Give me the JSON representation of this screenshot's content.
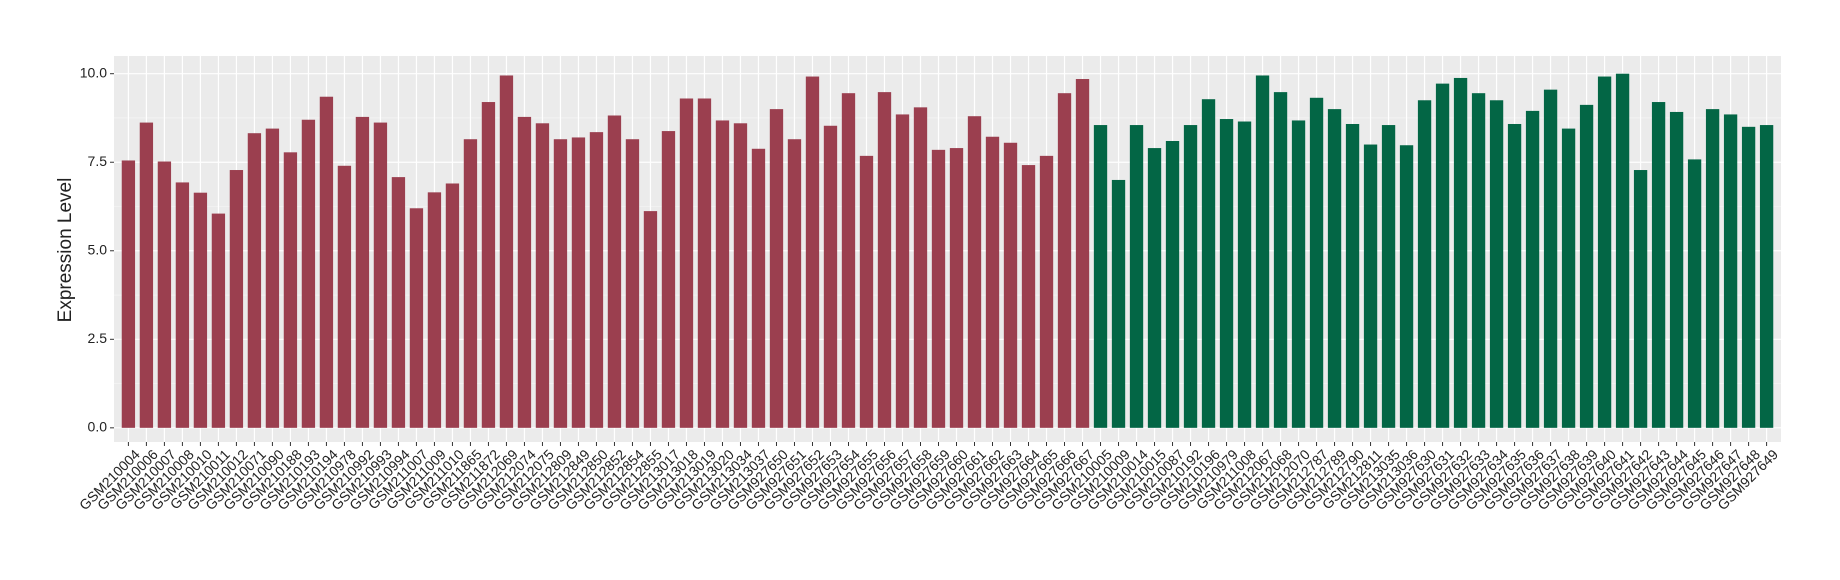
{
  "chart_data": {
    "type": "bar",
    "y_label": "Expression Level",
    "ylim": [
      -0.4,
      10.5
    ],
    "yticks": [
      {
        "value": 0,
        "label": "0.0"
      },
      {
        "value": 2.5,
        "label": "2.5"
      },
      {
        "value": 5,
        "label": "5.0"
      },
      {
        "value": 7.5,
        "label": "7.5"
      },
      {
        "value": 10,
        "label": "10.0"
      }
    ],
    "grid": true,
    "series": [
      {
        "color": "#9b3f4f",
        "categories": [
          "GSM210004",
          "GSM210006",
          "GSM210007",
          "GSM210008",
          "GSM210010",
          "GSM210011",
          "GSM210012",
          "GSM210071",
          "GSM210090",
          "GSM210188",
          "GSM210193",
          "GSM210194",
          "GSM210978",
          "GSM210992",
          "GSM210993",
          "GSM210994",
          "GSM211007",
          "GSM211009",
          "GSM211010",
          "GSM211865",
          "GSM211872",
          "GSM212069",
          "GSM212074",
          "GSM212075",
          "GSM212809",
          "GSM212849",
          "GSM212850",
          "GSM212852",
          "GSM212854",
          "GSM212855",
          "GSM213017",
          "GSM213018",
          "GSM213019",
          "GSM213020",
          "GSM213034",
          "GSM213037",
          "GSM927650",
          "GSM927651",
          "GSM927652",
          "GSM927653",
          "GSM927654",
          "GSM927655",
          "GSM927656",
          "GSM927657",
          "GSM927658",
          "GSM927659",
          "GSM927660",
          "GSM927661",
          "GSM927662",
          "GSM927663",
          "GSM927664",
          "GSM927665",
          "GSM927666",
          "GSM927667"
        ],
        "values": [
          7.55,
          8.62,
          7.52,
          6.93,
          6.64,
          6.05,
          7.28,
          8.32,
          8.45,
          7.78,
          8.7,
          9.35,
          7.4,
          8.78,
          8.62,
          7.08,
          6.2,
          6.65,
          6.9,
          8.15,
          9.2,
          9.95,
          8.78,
          8.6,
          8.15,
          8.2,
          8.35,
          8.82,
          8.15,
          6.12,
          8.38,
          9.3,
          9.3,
          8.68,
          8.6,
          7.88,
          9.0,
          8.15,
          9.92,
          8.53,
          9.45,
          7.68,
          9.48,
          8.85,
          9.05,
          7.85,
          7.9,
          8.8,
          8.22,
          8.05,
          7.42,
          7.68,
          9.45,
          9.85
        ]
      },
      {
        "color": "#036645",
        "categories": [
          "GSM210005",
          "GSM210009",
          "GSM210014",
          "GSM210015",
          "GSM210087",
          "GSM210192",
          "GSM210196",
          "GSM210979",
          "GSM211008",
          "GSM212067",
          "GSM212068",
          "GSM212070",
          "GSM212787",
          "GSM212789",
          "GSM212790",
          "GSM212811",
          "GSM213035",
          "GSM213036",
          "GSM927630",
          "GSM927631",
          "GSM927632",
          "GSM927633",
          "GSM927634",
          "GSM927635",
          "GSM927636",
          "GSM927637",
          "GSM927638",
          "GSM927639",
          "GSM927640",
          "GSM927641",
          "GSM927642",
          "GSM927643",
          "GSM927644",
          "GSM927645",
          "GSM927646",
          "GSM927647",
          "GSM927648",
          "GSM927649"
        ],
        "values": [
          8.55,
          7.0,
          8.55,
          7.9,
          8.1,
          8.55,
          9.28,
          8.72,
          8.65,
          9.95,
          9.48,
          8.68,
          9.32,
          9.0,
          8.58,
          8.0,
          8.55,
          7.98,
          9.25,
          9.72,
          9.88,
          9.45,
          9.25,
          8.58,
          8.95,
          9.55,
          8.45,
          9.12,
          9.92,
          10.0,
          7.28,
          9.2,
          8.92,
          7.58,
          9.0,
          8.85,
          8.5,
          8.55
        ]
      }
    ]
  }
}
